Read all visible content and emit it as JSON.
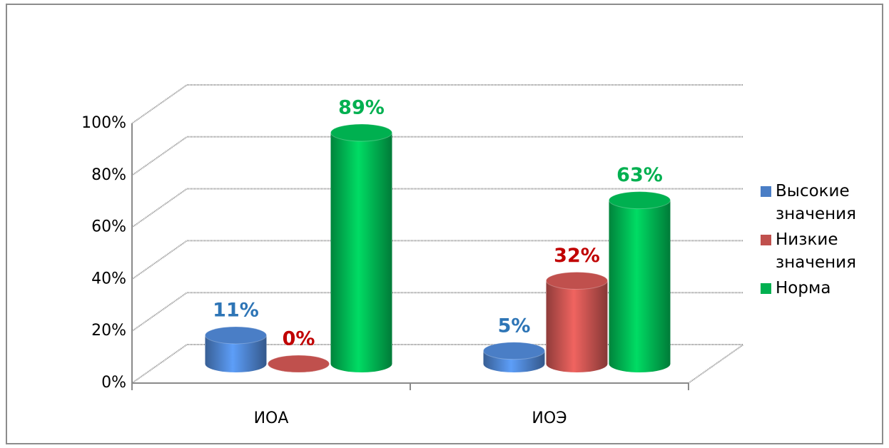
{
  "chart_data": {
    "type": "bar3d",
    "categories": [
      "ИОА",
      "ИОЭ"
    ],
    "series": [
      {
        "name": "Высокие значения",
        "color": "#4a7ec6",
        "label_color": "#2e75b6",
        "values": [
          11,
          5
        ],
        "value_labels": [
          "11%",
          "5%"
        ]
      },
      {
        "name": "Низкие значения",
        "color": "#c0504d",
        "label_color": "#c00000",
        "values": [
          0,
          32
        ],
        "value_labels": [
          "0%",
          "32%"
        ]
      },
      {
        "name": "Норма",
        "color": "#00b050",
        "label_color": "#00b050",
        "values": [
          89,
          63
        ],
        "value_labels": [
          "89%",
          "63%"
        ]
      }
    ],
    "ylim": [
      0,
      100
    ],
    "yticks": [
      {
        "value": 0,
        "label": "0%"
      },
      {
        "value": 20,
        "label": "20%"
      },
      {
        "value": 40,
        "label": "40%"
      },
      {
        "value": 60,
        "label": "60%"
      },
      {
        "value": 80,
        "label": "80%"
      },
      {
        "value": 100,
        "label": "100%"
      }
    ],
    "grid": true,
    "legend": "right"
  }
}
